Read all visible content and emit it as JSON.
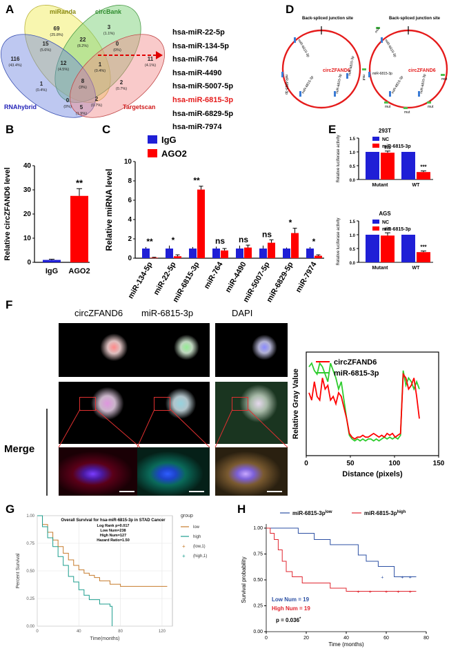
{
  "panels": {
    "A": "A",
    "B": "B",
    "C": "C",
    "D": "D",
    "E": "E",
    "F": "F",
    "G": "G",
    "H": "H"
  },
  "venn": {
    "sets": {
      "mirand": "miRanda",
      "circbank": "circBank",
      "rnahybrid": "RNAhybrid",
      "targetscan": "Targetscan"
    },
    "regions": [
      {
        "n": "69",
        "p": "(25.8%)"
      },
      {
        "n": "3",
        "p": "(1.1%)"
      },
      {
        "n": "116",
        "p": "(43.4%)"
      },
      {
        "n": "11",
        "p": "(4.1%)"
      },
      {
        "n": "15",
        "p": "(5.6%)"
      },
      {
        "n": "22",
        "p": "(8.2%)"
      },
      {
        "n": "0",
        "p": "(0%)"
      },
      {
        "n": "12",
        "p": "(4.5%)"
      },
      {
        "n": "1",
        "p": "(0.4%)"
      },
      {
        "n": "1",
        "p": "(0.4%)"
      },
      {
        "n": "8",
        "p": "(3%)"
      },
      {
        "n": "2",
        "p": "(0.7%)"
      },
      {
        "n": "0",
        "p": "(0%)"
      },
      {
        "n": "2",
        "p": "(0.7%)"
      },
      {
        "n": "5",
        "p": "(1.9%)"
      }
    ],
    "colors": {
      "mirand": "#f3ef6e",
      "circbank": "#7ed27a",
      "rnahybrid": "#6f86e0",
      "targetscan": "#f28a8a",
      "arrow": "#e00000"
    }
  },
  "mirna_list": [
    "hsa-miR-22-5p",
    "hsa-miR-134-5p",
    "hsa-miR-764",
    "hsa-miR-4490",
    "hsa-miR-5007-5p",
    "hsa-miR-6815-3p",
    "hsa-miR-6829-5p",
    "hsa-miR-7974"
  ],
  "mirna_highlight_index": 5,
  "panelB": {
    "ylabel": "Relative circZFAND6 level",
    "categories": [
      "IgG",
      "AGO2"
    ],
    "values": [
      1,
      27.5
    ],
    "errors": [
      0.3,
      3
    ],
    "ylim": [
      0,
      40
    ],
    "ticks": [
      "0",
      "10",
      "20",
      "30",
      "40"
    ],
    "sig": "**",
    "colors": [
      "#1f1fd6",
      "#ff0000"
    ]
  },
  "panelC": {
    "ylabel": "Relative miRNA level",
    "legend": [
      "IgG",
      "AGO2"
    ],
    "categories": [
      "miR-134-5p",
      "miR-22-5p",
      "miR-6815-3p",
      "miR-764",
      "miR-4490",
      "miR-5007-5p",
      "miR-6829-5p",
      "miR-7974"
    ],
    "igg": [
      1,
      1,
      1,
      1,
      1,
      1,
      1,
      1
    ],
    "ago2": [
      0.05,
      0.2,
      7.1,
      0.8,
      1.1,
      1.6,
      2.6,
      0.25
    ],
    "ago2_err": [
      0.05,
      0.15,
      0.35,
      0.2,
      0.25,
      0.3,
      0.5,
      0.1
    ],
    "igg_err": [
      0.15,
      0.3,
      0.15,
      0.2,
      0.3,
      0.3,
      0.1,
      0.15
    ],
    "sig": [
      "**",
      "*",
      "**",
      "ns",
      "ns",
      "ns",
      "*",
      "*"
    ],
    "ylim": [
      0,
      10
    ],
    "ticks": [
      "0",
      "2",
      "4",
      "6",
      "8",
      "10"
    ],
    "colors": [
      "#1f1fd6",
      "#ff0000"
    ]
  },
  "panelD": {
    "left": {
      "title": "Back-spliced junction site",
      "name": "circZFAND6",
      "sites": [
        "miR-6815-3p",
        "miR-6815-3p",
        "miR-6815-3p",
        "miR-6815-3p",
        "miR-6815-3p"
      ]
    },
    "right": {
      "title": "Back-spliced junction site",
      "name": "circZFAND6",
      "sites": [
        "miR-6815-3p",
        "miR-6815-3p",
        "miR-6815-3p",
        "miR-6815-3p"
      ],
      "mut_labels": [
        "mut",
        "mut",
        "mut",
        "mut",
        "mut",
        "mut"
      ]
    }
  },
  "panelE": {
    "top": {
      "title": "293T",
      "ylabel": "Relative luciferase activity",
      "legend": [
        "NC",
        "miR-6815-3p"
      ],
      "categories": [
        "Mutant",
        "WT"
      ],
      "nc": [
        1,
        1
      ],
      "mir": [
        0.97,
        0.27
      ],
      "mir_err": [
        0.06,
        0.04
      ],
      "sig": [
        "ns",
        "***"
      ],
      "ticks": [
        "0.0",
        "0.5",
        "1.0",
        "1.5"
      ]
    },
    "bottom": {
      "title": "AGS",
      "ylabel": "Relative luciferase activity",
      "legend": [
        "NC",
        "miR-6815-3p"
      ],
      "categories": [
        "Mutant",
        "WT"
      ],
      "nc": [
        1,
        1
      ],
      "mir": [
        0.97,
        0.37
      ],
      "mir_err": [
        0.1,
        0.04
      ],
      "sig": [
        "ns",
        "***"
      ],
      "ticks": [
        "0.0",
        "0.5",
        "1.0",
        "1.5"
      ]
    },
    "colors": [
      "#1f1fd6",
      "#ff0000"
    ]
  },
  "panelF": {
    "columns": [
      "circZFAND6",
      "miR-6815-3p",
      "DAPI"
    ],
    "row_label": "Merge",
    "legend": [
      "circZFAND6",
      "miR-6815-3p"
    ],
    "ylabel": "Relative Gray Value",
    "xlabel": "Distance (pixels)",
    "xticks": [
      "0",
      "50",
      "100",
      "150"
    ],
    "red": [
      1.7,
      1.5,
      2.0,
      1.6,
      1.5,
      2.1,
      1.8,
      1.9,
      1.5,
      1.6,
      1.4,
      1.7,
      1.6,
      1.3,
      1.0,
      0.6,
      0.5,
      0.45,
      0.5,
      0.5,
      0.55,
      0.5,
      0.5,
      0.55,
      0.6,
      0.55,
      0.5,
      0.55,
      0.5,
      0.6,
      0.55,
      0.6,
      0.5,
      0.55,
      0.6,
      2.2,
      2.1,
      1.8,
      1.9,
      2.1,
      1.6,
      1.0
    ],
    "green": [
      2.4,
      2.5,
      2.3,
      2.2,
      2.5,
      2.4,
      2.2,
      2.0,
      2.5,
      2.3,
      2.1,
      1.8,
      2.0,
      1.5,
      1.0,
      0.55,
      0.45,
      0.4,
      0.45,
      0.4,
      0.45,
      0.4,
      0.45,
      0.45,
      0.4,
      0.45,
      0.4,
      0.45,
      0.5,
      0.45,
      0.5,
      0.45,
      0.5,
      0.45,
      0.55,
      2.3,
      1.9,
      2.1,
      2.0,
      1.8,
      2.0,
      1.8
    ],
    "colors": [
      "#ff0000",
      "#2ecc2e"
    ]
  },
  "panelG": {
    "title": "Overall Survival for hsa-miR-6815-3p in STAD Cancer",
    "stats": [
      "Log Rank p=0.017",
      "Low Num=238",
      "High Num=127",
      "Hazard Ratio=1.50"
    ],
    "ylabel": "Percent Survival",
    "xlabel": "Time(months)",
    "yticks": [
      "0.00",
      "0.25",
      "0.50",
      "0.75",
      "1.00"
    ],
    "xticks": [
      "0",
      "40",
      "80",
      "120"
    ],
    "legend_title": "group",
    "legend": [
      "low",
      "high",
      "(low,1)",
      "(high,1)"
    ],
    "low": [
      [
        0,
        1.0
      ],
      [
        5,
        0.92
      ],
      [
        10,
        0.85
      ],
      [
        15,
        0.78
      ],
      [
        20,
        0.72
      ],
      [
        25,
        0.66
      ],
      [
        30,
        0.6
      ],
      [
        35,
        0.55
      ],
      [
        40,
        0.51
      ],
      [
        45,
        0.48
      ],
      [
        50,
        0.46
      ],
      [
        55,
        0.44
      ],
      [
        60,
        0.41
      ],
      [
        70,
        0.38
      ],
      [
        80,
        0.36
      ],
      [
        100,
        0.36
      ],
      [
        125,
        0.36
      ]
    ],
    "high": [
      [
        0,
        1.0
      ],
      [
        5,
        0.9
      ],
      [
        10,
        0.8
      ],
      [
        15,
        0.72
      ],
      [
        20,
        0.63
      ],
      [
        25,
        0.55
      ],
      [
        30,
        0.45
      ],
      [
        35,
        0.4
      ],
      [
        40,
        0.33
      ],
      [
        45,
        0.28
      ],
      [
        50,
        0.24
      ],
      [
        60,
        0.2
      ],
      [
        70,
        0.18
      ],
      [
        72,
        0.0
      ]
    ],
    "colors": {
      "low": "#c67b2c",
      "high": "#1c9e8e"
    }
  },
  "panelH": {
    "legend": [
      "miR-6815-3p",
      "low",
      "miR-6815-3p",
      "high"
    ],
    "ylabel": "Survival probability",
    "xlabel": "Time (months)",
    "yticks": [
      "0.00",
      "0.25",
      "0.50",
      "0.75",
      "1.00"
    ],
    "xticks": [
      "0",
      "20",
      "40",
      "60",
      "80"
    ],
    "low_num": "Low Num = 19",
    "high_num": "High Num = 19",
    "pvalue": "p = 0.036",
    "pvalue_mark": "*",
    "low": [
      [
        0,
        1.0
      ],
      [
        16,
        1.0
      ],
      [
        16,
        0.95
      ],
      [
        24,
        0.95
      ],
      [
        24,
        0.89
      ],
      [
        32,
        0.89
      ],
      [
        32,
        0.84
      ],
      [
        46,
        0.84
      ],
      [
        46,
        0.74
      ],
      [
        50,
        0.74
      ],
      [
        50,
        0.68
      ],
      [
        56,
        0.68
      ],
      [
        56,
        0.63
      ],
      [
        64,
        0.63
      ],
      [
        64,
        0.53
      ],
      [
        75,
        0.53
      ]
    ],
    "high": [
      [
        0,
        1.0
      ],
      [
        2,
        1.0
      ],
      [
        2,
        0.95
      ],
      [
        4,
        0.95
      ],
      [
        4,
        0.89
      ],
      [
        6,
        0.89
      ],
      [
        6,
        0.79
      ],
      [
        8,
        0.79
      ],
      [
        8,
        0.68
      ],
      [
        10,
        0.68
      ],
      [
        10,
        0.58
      ],
      [
        13,
        0.58
      ],
      [
        13,
        0.53
      ],
      [
        18,
        0.53
      ],
      [
        18,
        0.47
      ],
      [
        32,
        0.47
      ],
      [
        32,
        0.42
      ],
      [
        40,
        0.42
      ],
      [
        40,
        0.39
      ],
      [
        75,
        0.39
      ]
    ],
    "colors": {
      "low": "#2b4fa3",
      "high": "#e0242e"
    }
  }
}
